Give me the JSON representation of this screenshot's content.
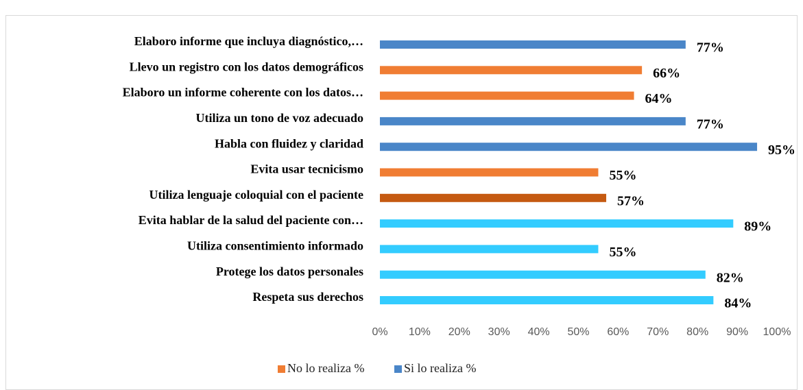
{
  "chart_data": {
    "type": "barh",
    "categories": [
      "Elaboro informe que incluya diagnóstico,…",
      "Llevo un registro con los datos demográficos",
      "Elaboro un informe coherente con los datos…",
      "Utiliza un tono de voz adecuado",
      "Habla con fluidez y claridad",
      "Evita usar tecnicismo",
      "Utiliza lenguaje coloquial con el paciente",
      "Evita hablar de la salud del paciente con…",
      "Utiliza consentimiento informado",
      "Protege los datos personales",
      "Respeta sus derechos"
    ],
    "values": [
      77,
      66,
      64,
      77,
      95,
      55,
      57,
      89,
      55,
      82,
      84
    ],
    "value_labels": [
      "77%",
      "66%",
      "64%",
      "77%",
      "95%",
      "55%",
      "57%",
      "89%",
      "55%",
      "82%",
      "84%"
    ],
    "colors": [
      "#4a86c8",
      "#f07d33",
      "#f07d33",
      "#4a86c8",
      "#4a86c8",
      "#f07d33",
      "#c55a11",
      "#33ccff",
      "#33ccff",
      "#33ccff",
      "#33ccff"
    ],
    "xlim": [
      0,
      100
    ],
    "xticks": [
      {
        "value": 0,
        "label": "0%"
      },
      {
        "value": 10,
        "label": "10%"
      },
      {
        "value": 20,
        "label": "20%"
      },
      {
        "value": 30,
        "label": "30%"
      },
      {
        "value": 40,
        "label": "40%"
      },
      {
        "value": 50,
        "label": "50%"
      },
      {
        "value": 60,
        "label": "60%"
      },
      {
        "value": 70,
        "label": "70%"
      },
      {
        "value": 80,
        "label": "80%"
      },
      {
        "value": 90,
        "label": "90%"
      },
      {
        "value": 100,
        "label": "100%"
      }
    ],
    "legend": [
      {
        "name": "No lo realiza %",
        "color": "#f07d33"
      },
      {
        "name": "Si lo realiza %",
        "color": "#4a86c8"
      }
    ]
  }
}
